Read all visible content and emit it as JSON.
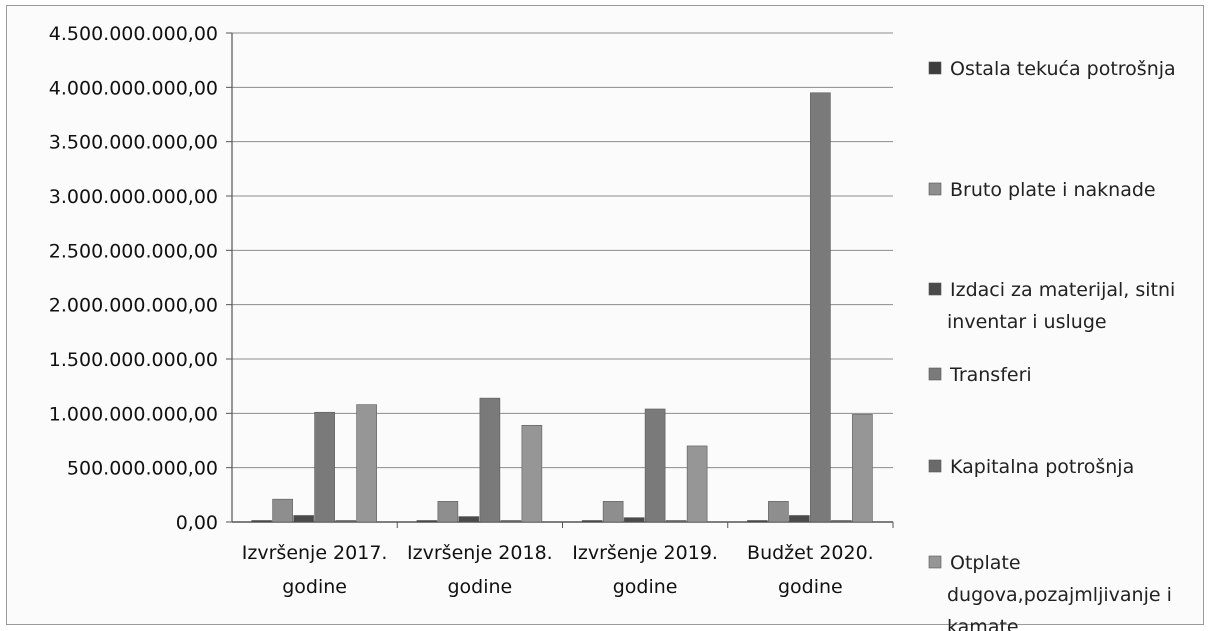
{
  "chart_data": {
    "type": "bar",
    "categories": [
      [
        "Izvršenje 2017.",
        "godine"
      ],
      [
        "Izvršenje 2018.",
        "godine"
      ],
      [
        "Izvršenje 2019.",
        "godine"
      ],
      [
        "Budžet 2020.",
        "godine"
      ]
    ],
    "series": [
      {
        "name": "Ostala tekuća potrošnja",
        "values": [
          0,
          0,
          0,
          0
        ],
        "color": "#3e3e3e"
      },
      {
        "name": "Bruto plate i naknade",
        "values": [
          210000000,
          190000000,
          190000000,
          190000000
        ],
        "color": "#8e8e8e"
      },
      {
        "name": "Izdaci za materijal, sitni inventar i usluge",
        "values": [
          60000000,
          50000000,
          40000000,
          60000000
        ],
        "color": "#4a4a4a"
      },
      {
        "name": "Transferi",
        "values": [
          1010000000,
          1140000000,
          1040000000,
          3950000000
        ],
        "color": "#7a7a7a"
      },
      {
        "name": "Kapitalna potrošnja",
        "values": [
          10000000,
          10000000,
          10000000,
          10000000
        ],
        "color": "#6a6a6a"
      },
      {
        "name": "Otplate dugova,pozajmljivanje i kamate",
        "values": [
          1080000000,
          890000000,
          700000000,
          990000000
        ],
        "color": "#969696"
      }
    ],
    "ylim": [
      0,
      4500000000
    ],
    "yticks": [
      "0,00",
      "500.000.000,00",
      "1.000.000.000,00",
      "1.500.000.000,00",
      "2.000.000.000,00",
      "2.500.000.000,00",
      "3.000.000.000,00",
      "3.500.000.000,00",
      "4.000.000.000,00",
      "4.500.000.000,00"
    ],
    "ytick_values": [
      0,
      500000000,
      1000000000,
      1500000000,
      2000000000,
      2500000000,
      3000000000,
      3500000000,
      4000000000,
      4500000000
    ],
    "legend": [
      [
        "Ostala tekuća potrošnja"
      ],
      [
        "Bruto plate i naknade"
      ],
      [
        "Izdaci za materijal, sitni",
        "inventar i usluge"
      ],
      [
        "Transferi"
      ],
      [
        "Kapitalna potrošnja"
      ],
      [
        "Otplate",
        "dugova,pozajmljivanje i",
        "kamate"
      ]
    ],
    "legend_position": "right",
    "grid": true
  }
}
